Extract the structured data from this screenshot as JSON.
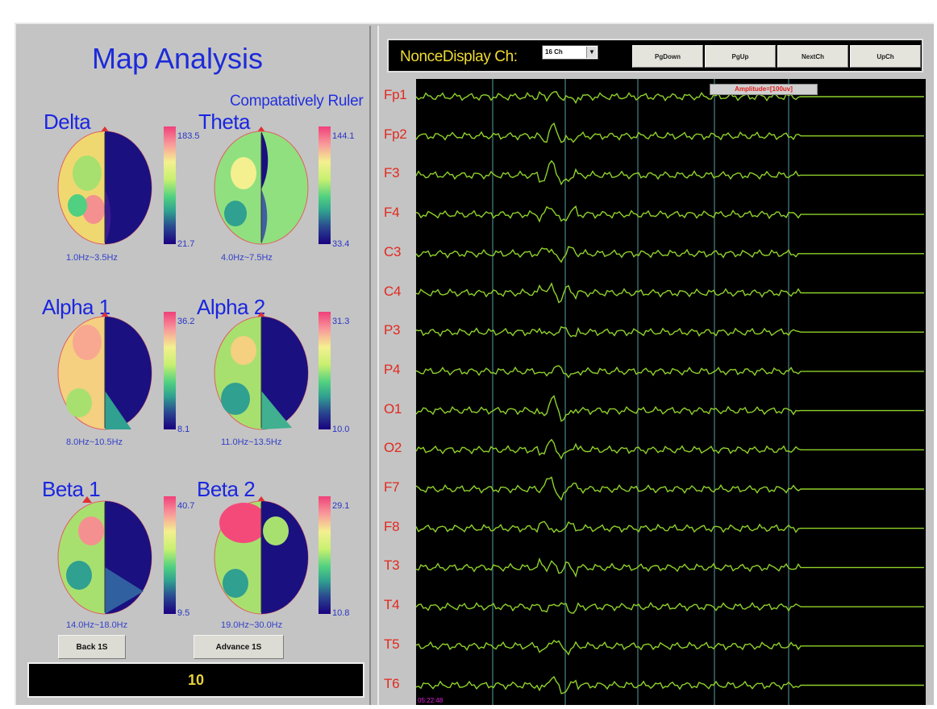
{
  "left_panel": {
    "title": "Map Analysis",
    "ruler_label": "Compatatively Ruler",
    "maps": [
      {
        "label": "Delta",
        "band": "1.0Hz~3.5Hz",
        "scale_max": "183.5",
        "scale_min": "21.7"
      },
      {
        "label": "Theta",
        "band": "4.0Hz~7.5Hz",
        "scale_max": "144.1",
        "scale_min": "33.4"
      },
      {
        "label": "Alpha 1",
        "band": "8.0Hz~10.5Hz",
        "scale_max": "36.2",
        "scale_min": "8.1"
      },
      {
        "label": "Alpha 2",
        "band": "11.0Hz~13.5Hz",
        "scale_max": "31.3",
        "scale_min": "10.0"
      },
      {
        "label": "Beta 1",
        "band": "14.0Hz~18.0Hz",
        "scale_max": "40.7",
        "scale_min": "9.5"
      },
      {
        "label": "Beta 2",
        "band": "19.0Hz~30.0Hz",
        "scale_max": "29.1",
        "scale_min": "10.8"
      }
    ],
    "back_button": "Back 1S",
    "advance_button": "Advance 1S",
    "counter_value": "10"
  },
  "right_panel": {
    "toolbar_title": "NonceDisplay Ch:",
    "channel_select": "16 Ch",
    "buttons": [
      "PgDown",
      "PgUp",
      "NextCh",
      "UpCh"
    ],
    "amplitude_label": "Amplitude=[100uv]",
    "timestamp": "05:22:48",
    "channels": [
      "Fp1",
      "Fp2",
      "F3",
      "F4",
      "C3",
      "C4",
      "P3",
      "P4",
      "O1",
      "O2",
      "F7",
      "F8",
      "T3",
      "T4",
      "T5",
      "T6"
    ]
  },
  "colors": {
    "title_blue": "#1d2bd8",
    "eeg_trace": "#8fd12a",
    "channel_label": "#e2281e",
    "toolbar_text": "#f0dc32",
    "counter_text": "#e8d33a",
    "grid_line": "#3a6a6a"
  },
  "icons": {
    "dropdown": "chevron-down-icon",
    "nose": "triangle-up-icon"
  }
}
